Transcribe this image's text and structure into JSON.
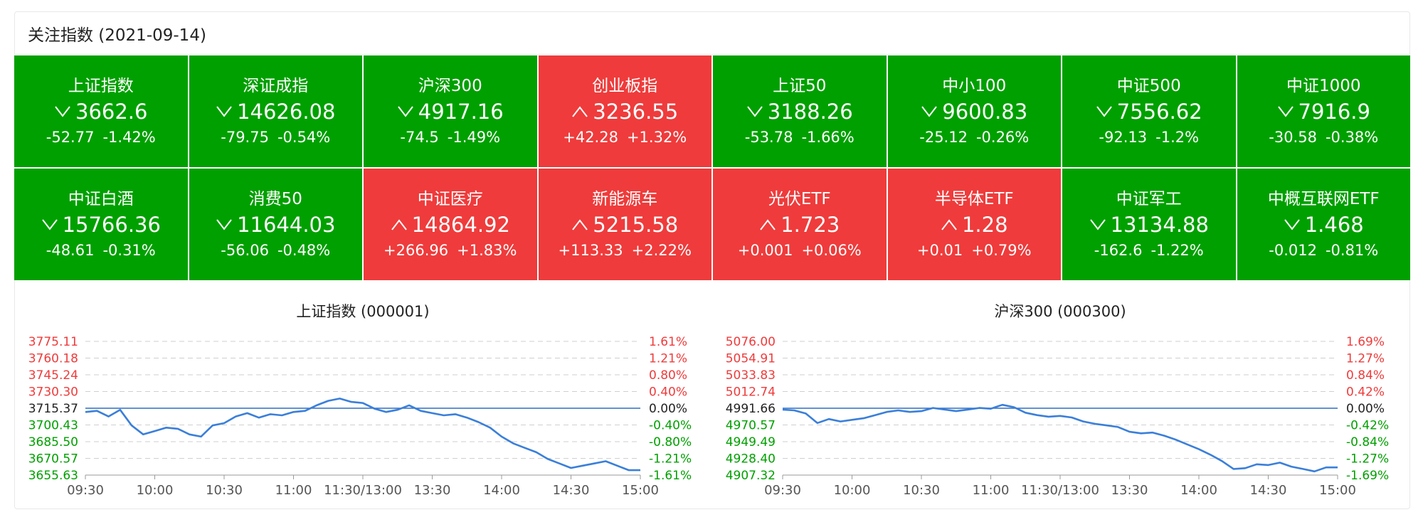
{
  "header": {
    "title": "关注指数 (2021-09-14)"
  },
  "colors": {
    "up": "#ef3b3b",
    "down": "#00a000",
    "line": "#3a7fd9",
    "baseline": "#2f6fc4",
    "grid": "#cfcfcf"
  },
  "icons": {
    "down": "chevron-down-icon",
    "up": "chevron-up-icon"
  },
  "tiles": [
    {
      "name": "上证指数",
      "price": "3662.6",
      "change": "-52.77",
      "pct": "-1.42%",
      "dir": "down"
    },
    {
      "name": "深证成指",
      "price": "14626.08",
      "change": "-79.75",
      "pct": "-0.54%",
      "dir": "down"
    },
    {
      "name": "沪深300",
      "price": "4917.16",
      "change": "-74.5",
      "pct": "-1.49%",
      "dir": "down"
    },
    {
      "name": "创业板指",
      "price": "3236.55",
      "change": "+42.28",
      "pct": "+1.32%",
      "dir": "up"
    },
    {
      "name": "上证50",
      "price": "3188.26",
      "change": "-53.78",
      "pct": "-1.66%",
      "dir": "down"
    },
    {
      "name": "中小100",
      "price": "9600.83",
      "change": "-25.12",
      "pct": "-0.26%",
      "dir": "down"
    },
    {
      "name": "中证500",
      "price": "7556.62",
      "change": "-92.13",
      "pct": "-1.2%",
      "dir": "down"
    },
    {
      "name": "中证1000",
      "price": "7916.9",
      "change": "-30.58",
      "pct": "-0.38%",
      "dir": "down"
    },
    {
      "name": "中证白酒",
      "price": "15766.36",
      "change": "-48.61",
      "pct": "-0.31%",
      "dir": "down"
    },
    {
      "name": "消费50",
      "price": "11644.03",
      "change": "-56.06",
      "pct": "-0.48%",
      "dir": "down"
    },
    {
      "name": "中证医疗",
      "price": "14864.92",
      "change": "+266.96",
      "pct": "+1.83%",
      "dir": "up"
    },
    {
      "name": "新能源车",
      "price": "5215.58",
      "change": "+113.33",
      "pct": "+2.22%",
      "dir": "up"
    },
    {
      "name": "光伏ETF",
      "price": "1.723",
      "change": "+0.001",
      "pct": "+0.06%",
      "dir": "up"
    },
    {
      "name": "半导体ETF",
      "price": "1.28",
      "change": "+0.01",
      "pct": "+0.79%",
      "dir": "up"
    },
    {
      "name": "中证军工",
      "price": "13134.88",
      "change": "-162.6",
      "pct": "-1.22%",
      "dir": "down"
    },
    {
      "name": "中概互联网ETF",
      "price": "1.468",
      "change": "-0.012",
      "pct": "-0.81%",
      "dir": "down"
    }
  ],
  "chart_data": [
    {
      "type": "line",
      "title": "上证指数 (000001)",
      "prev_close": 3715.37,
      "y_left_ticks": [
        "3775.11",
        "3760.18",
        "3745.24",
        "3730.30",
        "3715.37",
        "3700.43",
        "3685.50",
        "3670.57",
        "3655.63"
      ],
      "y_right_ticks": [
        "1.61%",
        "1.21%",
        "0.80%",
        "0.40%",
        "0.00%",
        "-0.40%",
        "-0.80%",
        "-1.21%",
        "-1.61%"
      ],
      "ylim": [
        3655.63,
        3775.11
      ],
      "x_ticks": [
        "09:30",
        "10:00",
        "10:30",
        "11:00",
        "11:30/13:00",
        "13:30",
        "14:00",
        "14:30",
        "15:00"
      ],
      "x_step_minutes": 5,
      "values": [
        3712,
        3713,
        3708,
        3714,
        3700,
        3692,
        3695,
        3698,
        3697,
        3692,
        3690,
        3700,
        3702,
        3708,
        3711,
        3707,
        3710,
        3709,
        3712,
        3713,
        3718,
        3722,
        3724,
        3721,
        3720,
        3715,
        3712,
        3714,
        3718,
        3713,
        3711,
        3709,
        3710,
        3707,
        3703,
        3698,
        3690,
        3684,
        3680,
        3676,
        3670,
        3666,
        3662,
        3664,
        3666,
        3668,
        3664,
        3660,
        3660
      ]
    },
    {
      "type": "line",
      "title": "沪深300 (000300)",
      "prev_close": 4991.66,
      "y_left_ticks": [
        "5076.00",
        "5054.91",
        "5033.83",
        "5012.74",
        "4991.66",
        "4970.57",
        "4949.49",
        "4928.40",
        "4907.32"
      ],
      "y_right_ticks": [
        "1.69%",
        "1.27%",
        "0.84%",
        "0.42%",
        "0.00%",
        "-0.42%",
        "-0.84%",
        "-1.27%",
        "-1.69%"
      ],
      "ylim": [
        4907.32,
        5076.0
      ],
      "x_ticks": [
        "09:30",
        "10:00",
        "10:30",
        "11:00",
        "11:30/13:00",
        "13:30",
        "14:00",
        "14:30",
        "15:00"
      ],
      "x_step_minutes": 5,
      "values": [
        4990,
        4989,
        4985,
        4973,
        4978,
        4975,
        4977,
        4979,
        4983,
        4987,
        4989,
        4987,
        4988,
        4992,
        4990,
        4988,
        4990,
        4992,
        4991,
        4996,
        4993,
        4986,
        4983,
        4981,
        4982,
        4980,
        4975,
        4972,
        4970,
        4968,
        4962,
        4960,
        4961,
        4957,
        4952,
        4946,
        4940,
        4933,
        4925,
        4915,
        4916,
        4921,
        4920,
        4923,
        4918,
        4915,
        4912,
        4917,
        4917
      ]
    }
  ]
}
